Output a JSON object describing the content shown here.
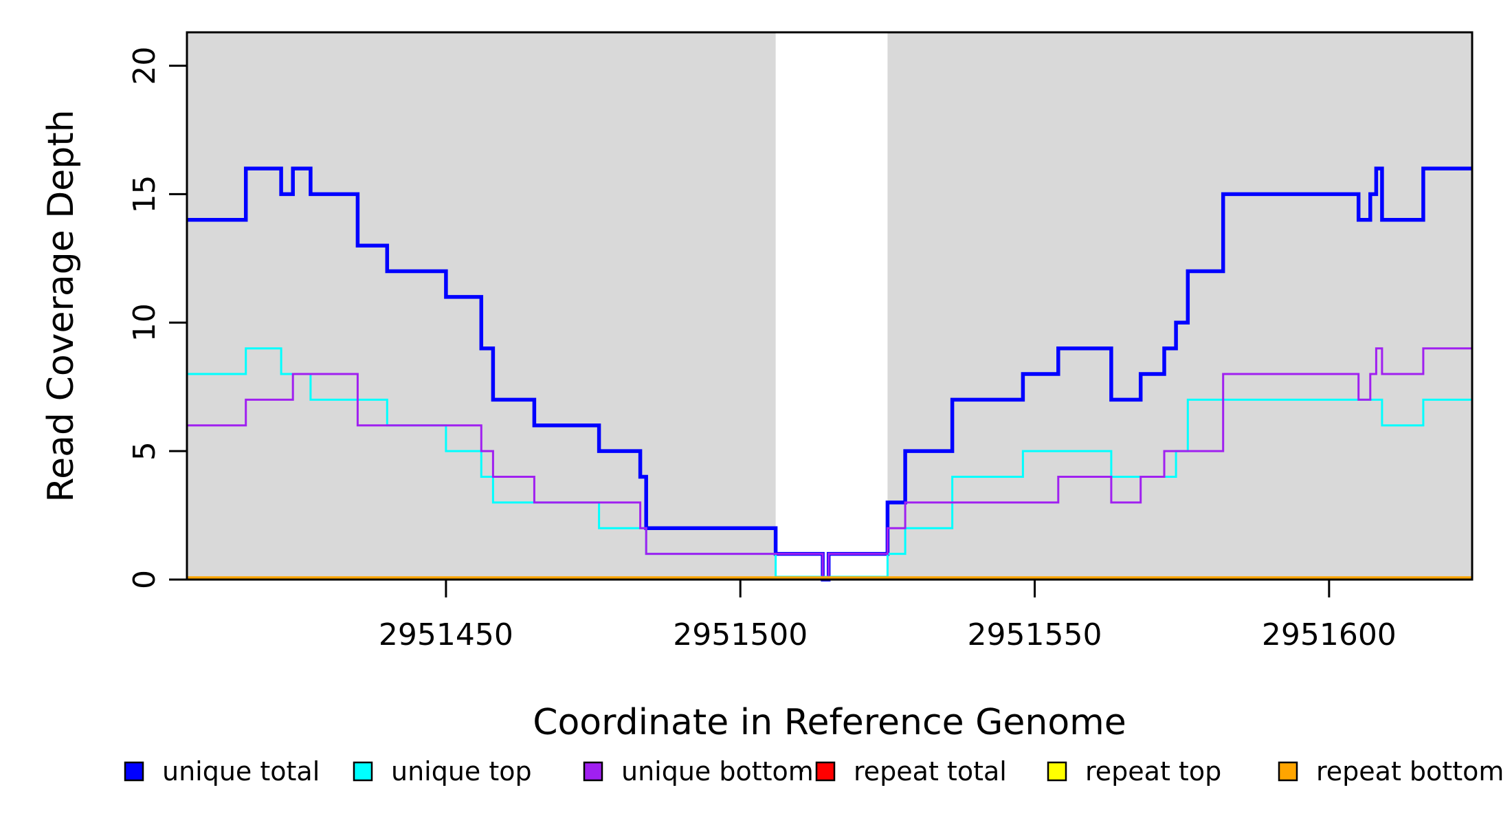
{
  "figure": {
    "title": "",
    "xlabel": "Coordinate in Reference Genome",
    "ylabel": "Read Coverage Depth"
  },
  "chart_data": {
    "type": "line",
    "step_style": "hv",
    "title": "",
    "xlabel": "Coordinate in Reference Genome",
    "ylabel": "Read Coverage Depth",
    "xlim": [
      2951406,
      2951624.3
    ],
    "ylim": [
      0,
      21.3
    ],
    "grid": "off",
    "x_ticks": [
      {
        "value": 2951450,
        "label": "2951450"
      },
      {
        "value": 2951500,
        "label": "2951500"
      },
      {
        "value": 2951550,
        "label": "2951550"
      },
      {
        "value": 2951600,
        "label": "2951600"
      }
    ],
    "y_ticks": [
      {
        "value": 0,
        "label": "0"
      },
      {
        "value": 5,
        "label": "5"
      },
      {
        "value": 10,
        "label": "10"
      },
      {
        "value": 15,
        "label": "15"
      },
      {
        "value": 20,
        "label": "20"
      }
    ],
    "plot_background": {
      "shaded_color": "#D9D9D9",
      "shaded_regions": [
        [
          2951406,
          2951506
        ],
        [
          2951525,
          2951624.3
        ]
      ],
      "unshaded_region": [
        2951506,
        2951525
      ],
      "unshaded_color": "#FFFFFF"
    },
    "series": [
      {
        "name": "unique total",
        "color": "#0000FF",
        "width": 5.5,
        "lift_at_zero": 0,
        "points": [
          [
            2951406,
            14
          ],
          [
            2951416,
            16
          ],
          [
            2951422,
            15
          ],
          [
            2951424,
            16
          ],
          [
            2951427,
            15
          ],
          [
            2951435,
            13
          ],
          [
            2951440,
            12
          ],
          [
            2951450,
            11
          ],
          [
            2951456,
            9
          ],
          [
            2951458,
            7
          ],
          [
            2951465,
            6
          ],
          [
            2951476,
            5
          ],
          [
            2951483,
            4
          ],
          [
            2951484,
            2
          ],
          [
            2951506,
            1
          ],
          [
            2951514,
            0
          ],
          [
            2951515,
            1
          ],
          [
            2951525,
            3
          ],
          [
            2951528,
            5
          ],
          [
            2951536,
            7
          ],
          [
            2951548,
            8
          ],
          [
            2951554,
            9
          ],
          [
            2951563,
            7
          ],
          [
            2951568,
            8
          ],
          [
            2951572,
            9
          ],
          [
            2951574,
            10
          ],
          [
            2951576,
            12
          ],
          [
            2951582,
            15
          ],
          [
            2951605,
            14
          ],
          [
            2951607,
            15
          ],
          [
            2951608,
            16
          ],
          [
            2951609,
            14
          ],
          [
            2951616,
            16
          ]
        ]
      },
      {
        "name": "unique top",
        "color": "#00FFFF",
        "width": 3,
        "lift_at_zero": 4,
        "points": [
          [
            2951406,
            8
          ],
          [
            2951416,
            9
          ],
          [
            2951422,
            8
          ],
          [
            2951427,
            7
          ],
          [
            2951440,
            6
          ],
          [
            2951450,
            5
          ],
          [
            2951456,
            4
          ],
          [
            2951458,
            3
          ],
          [
            2951476,
            2
          ],
          [
            2951484,
            1
          ],
          [
            2951506,
            0
          ],
          [
            2951525,
            1
          ],
          [
            2951528,
            2
          ],
          [
            2951536,
            4
          ],
          [
            2951548,
            5
          ],
          [
            2951563,
            4
          ],
          [
            2951574,
            5
          ],
          [
            2951576,
            7
          ],
          [
            2951609,
            6
          ],
          [
            2951616,
            7
          ]
        ]
      },
      {
        "name": "unique bottom",
        "color": "#A020F0",
        "width": 3,
        "lift_at_zero": 0,
        "points": [
          [
            2951406,
            6
          ],
          [
            2951416,
            7
          ],
          [
            2951424,
            8
          ],
          [
            2951435,
            6
          ],
          [
            2951456,
            5
          ],
          [
            2951458,
            4
          ],
          [
            2951465,
            3
          ],
          [
            2951483,
            2
          ],
          [
            2951484,
            1
          ],
          [
            2951514,
            0
          ],
          [
            2951515,
            1
          ],
          [
            2951525,
            2
          ],
          [
            2951528,
            3
          ],
          [
            2951554,
            4
          ],
          [
            2951563,
            3
          ],
          [
            2951568,
            4
          ],
          [
            2951572,
            5
          ],
          [
            2951582,
            8
          ],
          [
            2951605,
            7
          ],
          [
            2951607,
            8
          ],
          [
            2951608,
            9
          ],
          [
            2951609,
            8
          ],
          [
            2951616,
            9
          ]
        ]
      },
      {
        "name": "repeat total",
        "color": "#FF0000",
        "width": 3,
        "lift_at_zero": 2.5,
        "points": [
          [
            2951406,
            0
          ]
        ]
      },
      {
        "name": "repeat top",
        "color": "#FFFF00",
        "width": 3,
        "lift_at_zero": 2.5,
        "points": [
          [
            2951406,
            0
          ]
        ]
      },
      {
        "name": "repeat bottom",
        "color": "#FFA500",
        "width": 4.5,
        "lift_at_zero": 2.5,
        "points": [
          [
            2951406,
            0
          ]
        ]
      }
    ],
    "legend": {
      "position": "bottom",
      "entries": [
        {
          "label": "unique total",
          "color": "#0000FF"
        },
        {
          "label": "unique top",
          "color": "#00FFFF"
        },
        {
          "label": "unique bottom",
          "color": "#A020F0"
        },
        {
          "label": "repeat total",
          "color": "#FF0000"
        },
        {
          "label": "repeat top",
          "color": "#FFFF00"
        },
        {
          "label": "repeat bottom",
          "color": "#FFA500"
        }
      ],
      "stray_dot": true
    }
  }
}
